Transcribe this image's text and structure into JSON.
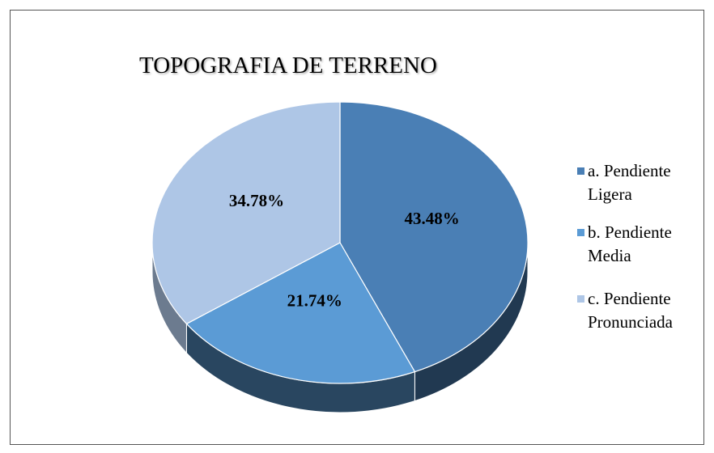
{
  "chart_data": {
    "type": "pie",
    "title": "TOPOGRAFIA DE TERRENO",
    "categories": [
      "a. Pendiente Ligera",
      "b. Pendiente Media",
      "c. Pendiente Pronunciada"
    ],
    "values": [
      43.48,
      21.74,
      34.78
    ],
    "value_labels": [
      "43.48%",
      "21.74%",
      "34.78%"
    ],
    "colors": [
      "#4a7fb5",
      "#5b9bd5",
      "#aec6e6"
    ],
    "legend": "right"
  }
}
